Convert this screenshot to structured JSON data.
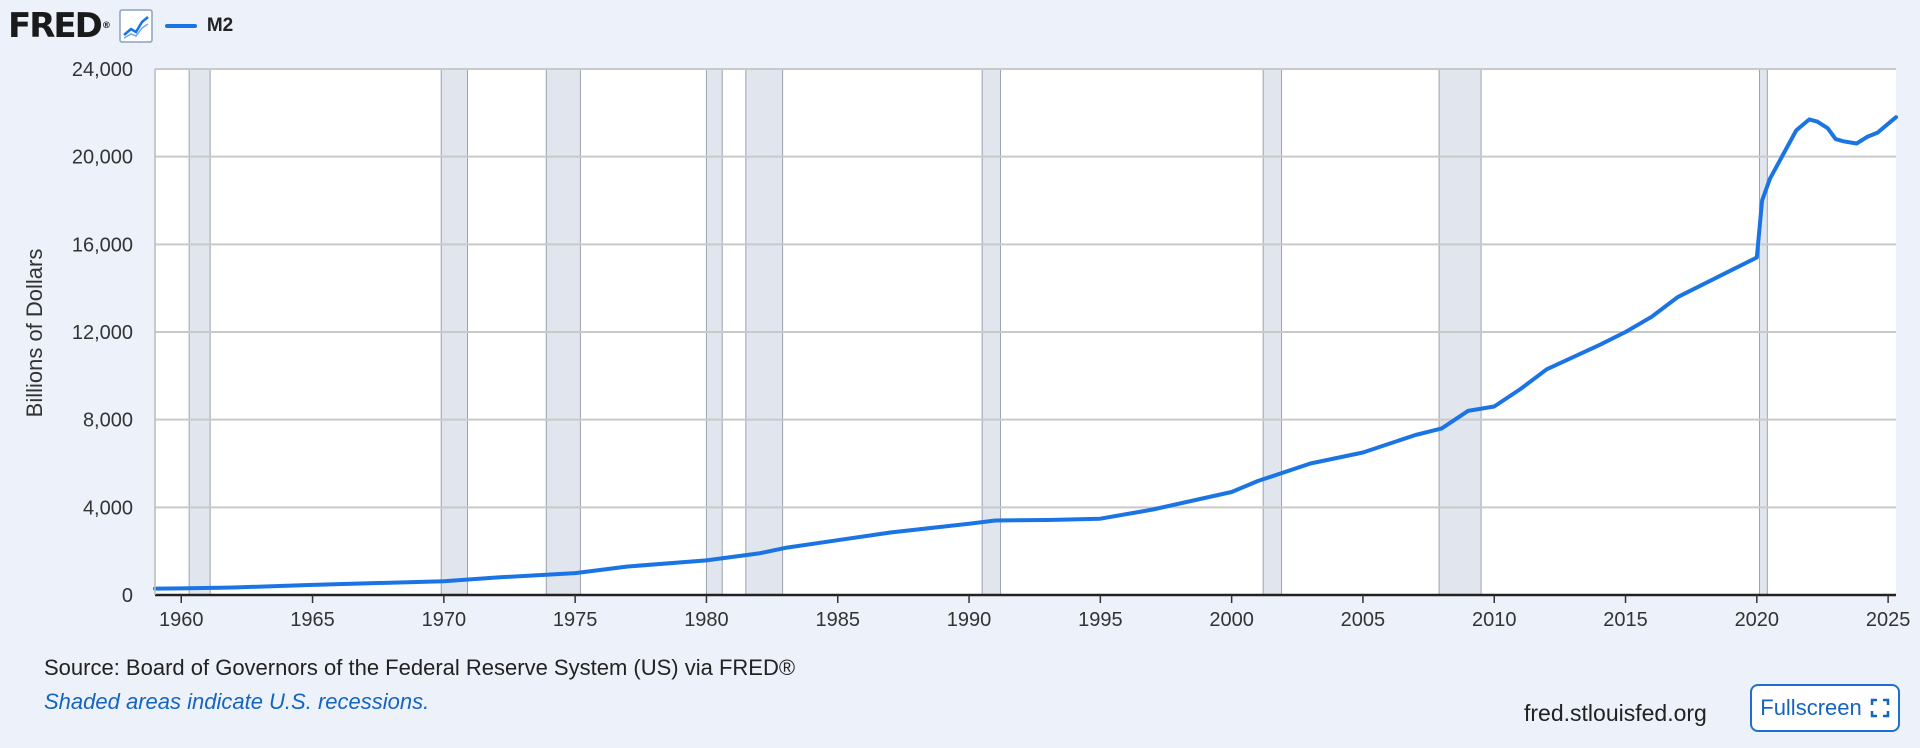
{
  "header": {
    "logo_text": "FRED",
    "logo_mark": "®",
    "graph_icon": "line-graph-icon",
    "legend_label": "M2",
    "legend_color": "#1b74e4"
  },
  "footer": {
    "source": "Source: Board of Governors of the Federal Reserve System (US) via FRED®",
    "note": "Shaded areas indicate U.S. recessions.",
    "site": "fred.stlouisfed.org",
    "fullscreen_label": "Fullscreen",
    "fullscreen_icon": "expand-icon"
  },
  "chart_data": {
    "type": "line",
    "title": "",
    "xlabel": "",
    "ylabel": "Billions of Dollars",
    "xlim": [
      1959.0,
      2025.3
    ],
    "ylim": [
      0,
      24000
    ],
    "grid": true,
    "x_ticks": [
      1960,
      1965,
      1970,
      1975,
      1980,
      1985,
      1990,
      1995,
      2000,
      2005,
      2010,
      2015,
      2020,
      2025
    ],
    "y_ticks": [
      0,
      4000,
      8000,
      12000,
      16000,
      20000,
      24000
    ],
    "y_tick_labels": [
      "0",
      "4,000",
      "8,000",
      "12,000",
      "16,000",
      "20,000",
      "24,000"
    ],
    "series": [
      {
        "name": "M2",
        "color": "#1b74e4",
        "x": [
          1959.0,
          1960.0,
          1962.0,
          1965.0,
          1967.0,
          1970.0,
          1972.0,
          1975.0,
          1977.0,
          1980.0,
          1982.0,
          1983.0,
          1985.0,
          1987.0,
          1990.0,
          1991.0,
          1993.0,
          1994.0,
          1995.0,
          1997.0,
          2000.0,
          2001.0,
          2003.0,
          2005.0,
          2007.0,
          2008.0,
          2009.0,
          2010.0,
          2011.0,
          2012.0,
          2014.0,
          2015.0,
          2016.0,
          2017.0,
          2019.0,
          2020.0,
          2020.2,
          2020.5,
          2021.0,
          2021.5,
          2022.0,
          2022.3,
          2022.7,
          2023.0,
          2023.3,
          2023.8,
          2024.2,
          2024.6,
          2025.0,
          2025.3
        ],
        "y": [
          290,
          300,
          340,
          460,
          530,
          630,
          800,
          1000,
          1300,
          1580,
          1900,
          2150,
          2500,
          2850,
          3250,
          3400,
          3420,
          3450,
          3480,
          3900,
          4700,
          5200,
          6000,
          6500,
          7300,
          7600,
          8400,
          8600,
          9400,
          10300,
          11400,
          12000,
          12700,
          13600,
          14800,
          15400,
          18000,
          19000,
          20100,
          21200,
          21700,
          21600,
          21300,
          20800,
          20700,
          20600,
          20900,
          21100,
          21500,
          21800
        ]
      }
    ],
    "recessions": [
      [
        1960.3,
        1961.1
      ],
      [
        1969.9,
        1970.9
      ],
      [
        1973.9,
        1975.2
      ],
      [
        1980.0,
        1980.6
      ],
      [
        1981.5,
        1982.9
      ],
      [
        1990.5,
        1991.2
      ],
      [
        2001.2,
        2001.9
      ],
      [
        2007.9,
        2009.5
      ],
      [
        2020.1,
        2020.4
      ]
    ]
  }
}
